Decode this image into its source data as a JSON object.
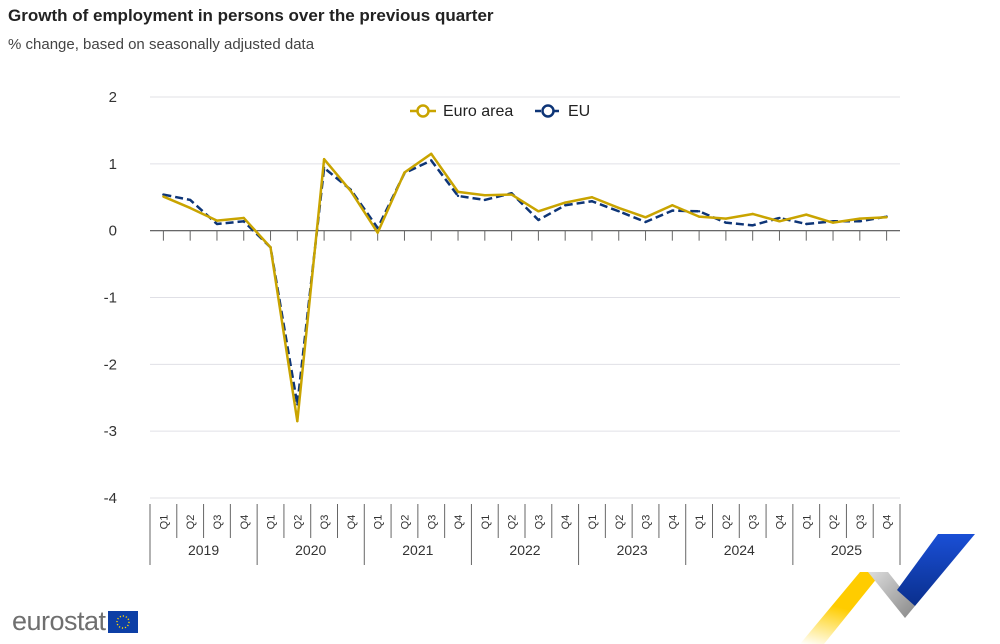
{
  "title": "Growth of employment in persons over the previous quarter",
  "subtitle": "% change, based on seasonally adjusted data",
  "logo_text": "eurostat",
  "chart_data": {
    "type": "line",
    "title": "Growth of employment in persons over the previous quarter",
    "subtitle": "% change, based on seasonally adjusted data",
    "xlabel": "",
    "ylabel": "",
    "ylim": [
      -4,
      2
    ],
    "yticks": [
      "2",
      "1",
      "0",
      "-1",
      "-2",
      "-3",
      "-4"
    ],
    "grid": true,
    "legend": "top-center",
    "years": [
      "2019",
      "2020",
      "2021",
      "2022",
      "2023",
      "2024",
      "2025"
    ],
    "quarters": [
      "Q1",
      "Q2",
      "Q3",
      "Q4"
    ],
    "series": [
      {
        "name": "Euro area",
        "color": "#c9a400",
        "style": "solid",
        "values": [
          0.51,
          0.34,
          0.15,
          0.19,
          -0.25,
          -2.85,
          1.07,
          0.59,
          -0.03,
          0.87,
          1.15,
          0.58,
          0.53,
          0.54,
          0.29,
          0.42,
          0.5,
          0.34,
          0.2,
          0.38,
          0.21,
          0.18,
          0.25,
          0.14,
          0.24,
          0.12,
          0.18,
          0.2
        ]
      },
      {
        "name": "EU",
        "color": "#0e3577",
        "style": "dashed",
        "values": [
          0.54,
          0.46,
          0.1,
          0.14,
          -0.25,
          -2.6,
          0.94,
          0.61,
          0.04,
          0.86,
          1.05,
          0.52,
          0.46,
          0.56,
          0.16,
          0.38,
          0.44,
          0.29,
          0.13,
          0.3,
          0.29,
          0.12,
          0.08,
          0.19,
          0.1,
          0.14,
          0.14,
          0.21
        ]
      }
    ]
  }
}
